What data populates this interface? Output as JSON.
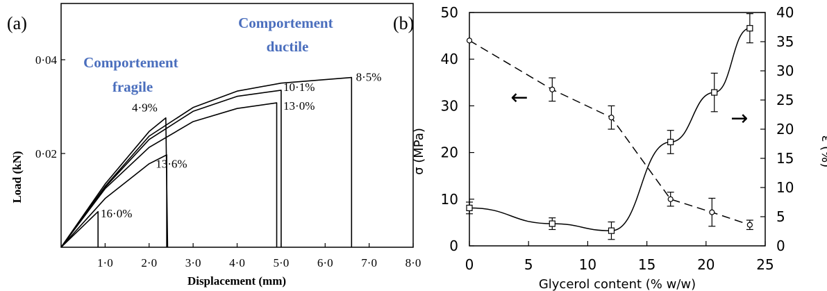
{
  "chart_data": [
    {
      "panel": "(a)",
      "type": "line",
      "title": "",
      "xlabel": "Displacement (mm)",
      "ylabel": "Load (kN)",
      "xlim": [
        0,
        8.0
      ],
      "ylim": [
        0,
        0.052
      ],
      "x_ticks": [
        "1·0",
        "2·0",
        "3·0",
        "4·0",
        "5·0",
        "6·0",
        "7·0",
        "8·0"
      ],
      "x_tick_values": [
        1,
        2,
        3,
        4,
        5,
        6,
        7,
        8
      ],
      "y_ticks": [
        "0·02",
        "0·04"
      ],
      "y_tick_values": [
        0.02,
        0.04
      ],
      "grid": false,
      "series": [
        {
          "name": "16·0%",
          "x": [
            0,
            0.84,
            0.84
          ],
          "y": [
            0,
            0.0076,
            0
          ]
        },
        {
          "name": "13·6%",
          "x": [
            0,
            1.0,
            2.0,
            2.4,
            2.4
          ],
          "y": [
            0,
            0.0104,
            0.0178,
            0.0197,
            0
          ]
        },
        {
          "name": "4·9%",
          "x": [
            0,
            1.0,
            2.0,
            2.38,
            2.42
          ],
          "y": [
            0,
            0.0135,
            0.0247,
            0.0276,
            0
          ]
        },
        {
          "name": "13·0%",
          "x": [
            0,
            1.0,
            2.0,
            3.0,
            4.0,
            4.9,
            4.9
          ],
          "y": [
            0,
            0.0125,
            0.0213,
            0.0268,
            0.0296,
            0.0308,
            0
          ]
        },
        {
          "name": "10·1%",
          "x": [
            0,
            1.0,
            2.0,
            3.0,
            4.0,
            5.0,
            5.0
          ],
          "y": [
            0,
            0.0128,
            0.023,
            0.029,
            0.0322,
            0.0335,
            0
          ]
        },
        {
          "name": "8·5%",
          "x": [
            0,
            1.0,
            2.0,
            3.0,
            4.0,
            5.0,
            6.6,
            6.6
          ],
          "y": [
            0,
            0.013,
            0.0237,
            0.0298,
            0.0333,
            0.035,
            0.0362,
            0
          ]
        }
      ],
      "annotations": [
        "Comportement fragile",
        "Comportement ductile"
      ]
    },
    {
      "panel": "(b)",
      "type": "line",
      "title": "",
      "xlabel": "Glycerol content (% w/w)",
      "ylabel": "σ (MPa)",
      "ylabel_right": "ε (%)",
      "xlim": [
        0,
        25
      ],
      "ylim": [
        0,
        50
      ],
      "ylim_right": [
        0,
        40
      ],
      "x_ticks": [
        "0",
        "5",
        "10",
        "15",
        "20",
        "25"
      ],
      "x_tick_values": [
        0,
        5,
        10,
        15,
        20,
        25
      ],
      "y_ticks": [
        "0",
        "10",
        "20",
        "30",
        "40",
        "50"
      ],
      "y_tick_values": [
        0,
        10,
        20,
        30,
        40,
        50
      ],
      "y_right_ticks": [
        "0",
        "5",
        "10",
        "15",
        "20",
        "25",
        "30",
        "35",
        "40"
      ],
      "y_right_tick_values": [
        0,
        5,
        10,
        15,
        20,
        25,
        30,
        35,
        40
      ],
      "grid": false,
      "series": [
        {
          "marker": "circle",
          "line": "dashed",
          "axis": "left",
          "x": [
            0,
            7,
            12,
            17,
            20.5,
            23.7
          ],
          "y": [
            44,
            33.5,
            27.5,
            10,
            7.2,
            4.5
          ],
          "err": [
            0,
            2.5,
            2.5,
            1.5,
            3,
            1
          ]
        },
        {
          "marker": "square",
          "line": "solid",
          "axis": "right",
          "x": [
            0,
            7,
            12,
            17,
            20.7,
            23.7
          ],
          "y": [
            6.5,
            3.8,
            2.6,
            17.8,
            26.3,
            37.3
          ],
          "err": [
            1,
            1,
            1.5,
            2,
            3.3,
            2.5
          ]
        }
      ],
      "annotations": [
        "←",
        "→"
      ]
    }
  ]
}
